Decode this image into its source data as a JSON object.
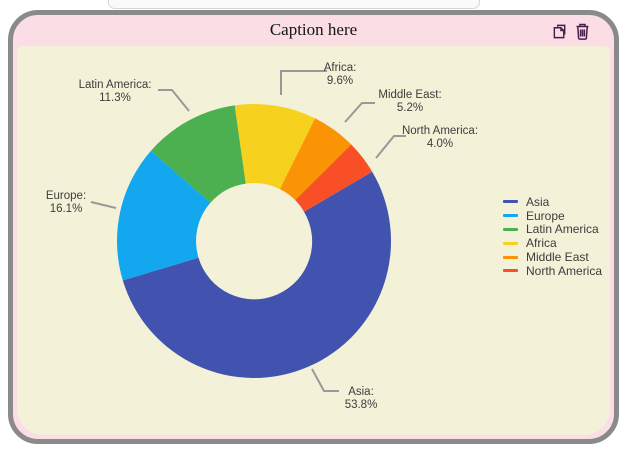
{
  "header": {
    "caption": "Caption here",
    "actions": [
      {
        "name": "copy",
        "icon": "copy-icon"
      },
      {
        "name": "delete",
        "icon": "trash-icon"
      }
    ]
  },
  "colors": {
    "card_border": "#8a8a8a",
    "card_bg": "#fbdde6",
    "panel_bg": "#f3f1d8",
    "icon": "#4a1c49",
    "label_text": "#3d3d3d",
    "leader_line": "#999999"
  },
  "chart_data": {
    "type": "pie",
    "subtype": "donut",
    "total": 100.0,
    "start_angle_deg_cw_from_top": 59.6,
    "inner_radius_ratio": 0.42,
    "legend_position": "right",
    "segments": [
      {
        "label": "Asia",
        "value": 53.8,
        "callout_name": "Asia:",
        "callout_value": "53.8%",
        "color": "#4153af"
      },
      {
        "label": "Europe",
        "value": 16.1,
        "callout_name": "Europe:",
        "callout_value": "16.1%",
        "color": "#12a7ee"
      },
      {
        "label": "Latin America",
        "value": 11.3,
        "callout_name": "Latin America:",
        "callout_value": "11.3%",
        "color": "#4caf50"
      },
      {
        "label": "Africa",
        "value": 9.6,
        "callout_name": "Africa:",
        "callout_value": "9.6%",
        "color": "#f6d11d"
      },
      {
        "label": "Middle East",
        "value": 5.2,
        "callout_name": "Middle East:",
        "callout_value": "5.2%",
        "color": "#fb9405"
      },
      {
        "label": "North America",
        "value": 4.0,
        "callout_name": "North America:",
        "callout_value": "4.0%",
        "color": "#f94f26"
      }
    ]
  }
}
